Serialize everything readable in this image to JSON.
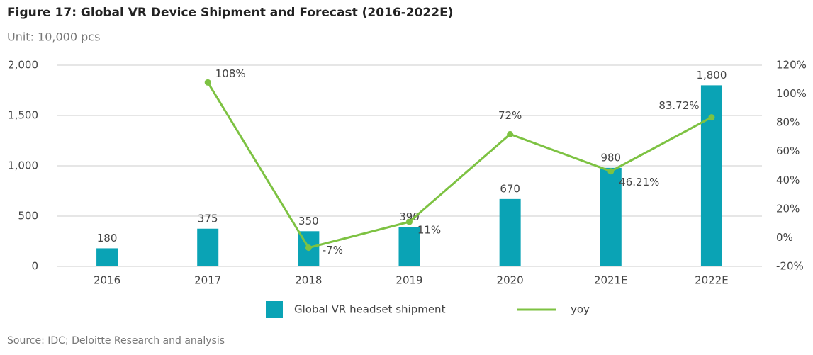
{
  "chart_data": {
    "type": "bar",
    "title": "Figure 17: Global VR Device Shipment and Forecast (2016-2022E)",
    "subtitle": "Unit: 10,000 pcs",
    "source": "Source: IDC; Deloitte Research and analysis",
    "categories": [
      "2016",
      "2017",
      "2018",
      "2019",
      "2020",
      "2021E",
      "2022E"
    ],
    "series": [
      {
        "name": "Global VR headset shipment",
        "type": "bar",
        "color": "#0aa3b5",
        "values": [
          180,
          375,
          350,
          390,
          670,
          980,
          1800
        ],
        "value_labels": [
          "180",
          "375",
          "350",
          "390",
          "670",
          "980",
          "1,800"
        ]
      },
      {
        "name": "yoy",
        "type": "line",
        "axis": "y2",
        "color": "#7dc242",
        "values": [
          null,
          108,
          -7,
          11,
          72,
          46.21,
          83.72
        ],
        "value_labels": [
          null,
          "108%",
          "-7%",
          "11%",
          "72%",
          "46.21%",
          "83.72%"
        ]
      }
    ],
    "ylim": [
      0,
      2000
    ],
    "yticks": [
      0,
      500,
      {
        "value": 1000,
        "label": "1,000"
      },
      {
        "value": 1500,
        "label": "1,500"
      },
      {
        "value": 2000,
        "label": "2,000"
      }
    ],
    "y2lim": [
      -20,
      120
    ],
    "y2ticks": [
      {
        "value": -20,
        "label": "-20%"
      },
      {
        "value": 0,
        "label": "0%"
      },
      {
        "value": 20,
        "label": "20%"
      },
      {
        "value": 40,
        "label": "40%"
      },
      {
        "value": 60,
        "label": "60%"
      },
      {
        "value": 80,
        "label": "80%"
      },
      {
        "value": 100,
        "label": "100%"
      },
      {
        "value": 120,
        "label": "120%"
      }
    ],
    "grid": true
  }
}
